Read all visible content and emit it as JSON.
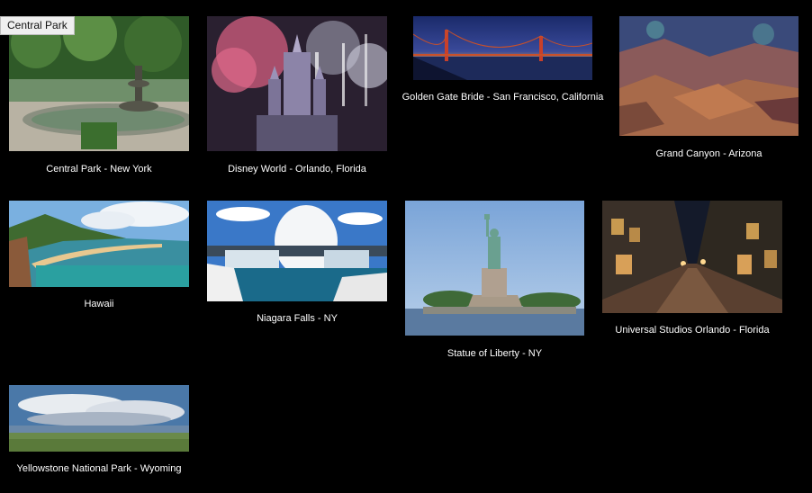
{
  "tooltip": {
    "text": "Central Park"
  },
  "gallery": {
    "items": [
      {
        "id": "central-park",
        "caption": "Central Park - New York",
        "image": "central-park-photo"
      },
      {
        "id": "disney-world",
        "caption": "Disney World - Orlando, Florida",
        "image": "disney-world-photo"
      },
      {
        "id": "golden-gate",
        "caption": "Golden Gate Bride - San Francisco, California",
        "image": "golden-gate-photo"
      },
      {
        "id": "grand-canyon",
        "caption": "Grand Canyon - Arizona",
        "image": "grand-canyon-photo"
      },
      {
        "id": "hawaii",
        "caption": "Hawaii",
        "image": "hawaii-photo"
      },
      {
        "id": "niagara-falls",
        "caption": "Niagara Falls - NY",
        "image": "niagara-falls-photo"
      },
      {
        "id": "statue-of-liberty",
        "caption": "Statue of Liberty - NY",
        "image": "statue-of-liberty-photo"
      },
      {
        "id": "universal-studios",
        "caption": "Universal Studios Orlando - Florida",
        "image": "universal-studios-photo"
      },
      {
        "id": "yellowstone",
        "caption": "Yellowstone National Park - Wyoming",
        "image": "yellowstone-photo"
      }
    ]
  }
}
